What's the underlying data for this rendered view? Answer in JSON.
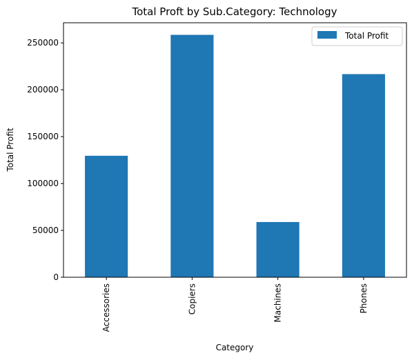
{
  "chart_data": {
    "type": "bar",
    "title": "Total Proft by Sub.Category: Technology",
    "xlabel": "Category",
    "ylabel": "Total Profit",
    "categories": [
      "Accessories",
      "Copiers",
      "Machines",
      "Phones"
    ],
    "series": [
      {
        "name": "Total Profit",
        "values": [
          129600,
          258600,
          58900,
          216700
        ]
      }
    ],
    "ylim": [
      0,
      271500
    ],
    "yticks": [
      0,
      50000,
      100000,
      150000,
      200000,
      250000
    ],
    "ytick_labels": [
      "0",
      "50000",
      "100000",
      "150000",
      "200000",
      "250000"
    ],
    "bar_color": "#1f77b4",
    "grid": false,
    "legend_position": "upper right"
  }
}
